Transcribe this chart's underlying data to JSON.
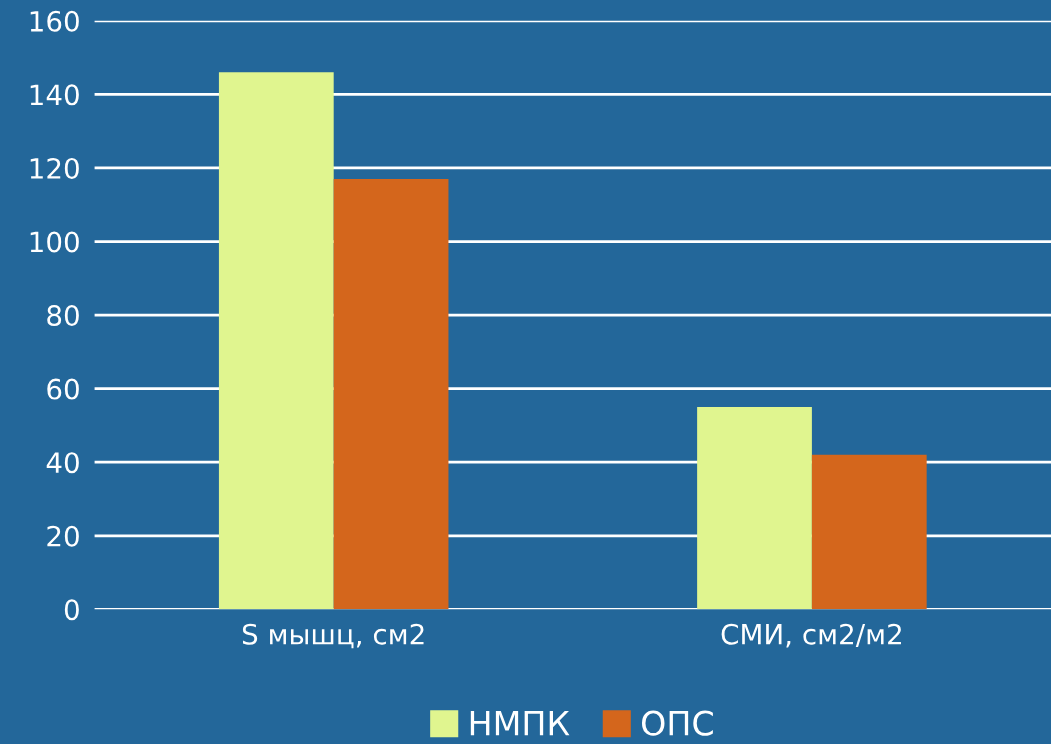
{
  "chart_data": {
    "type": "bar",
    "categories": [
      "S мышц, см2",
      "СМИ, см2/м2"
    ],
    "series": [
      {
        "name": "НМПК",
        "color": "#e0f58f",
        "values": [
          146,
          55
        ]
      },
      {
        "name": "ОПС",
        "color": "#d4661c",
        "values": [
          117,
          42
        ]
      }
    ],
    "ylim": [
      0,
      160
    ],
    "yticks": [
      0,
      20,
      40,
      60,
      80,
      100,
      120,
      140,
      160
    ],
    "grid": "y",
    "legend": "bottom"
  }
}
